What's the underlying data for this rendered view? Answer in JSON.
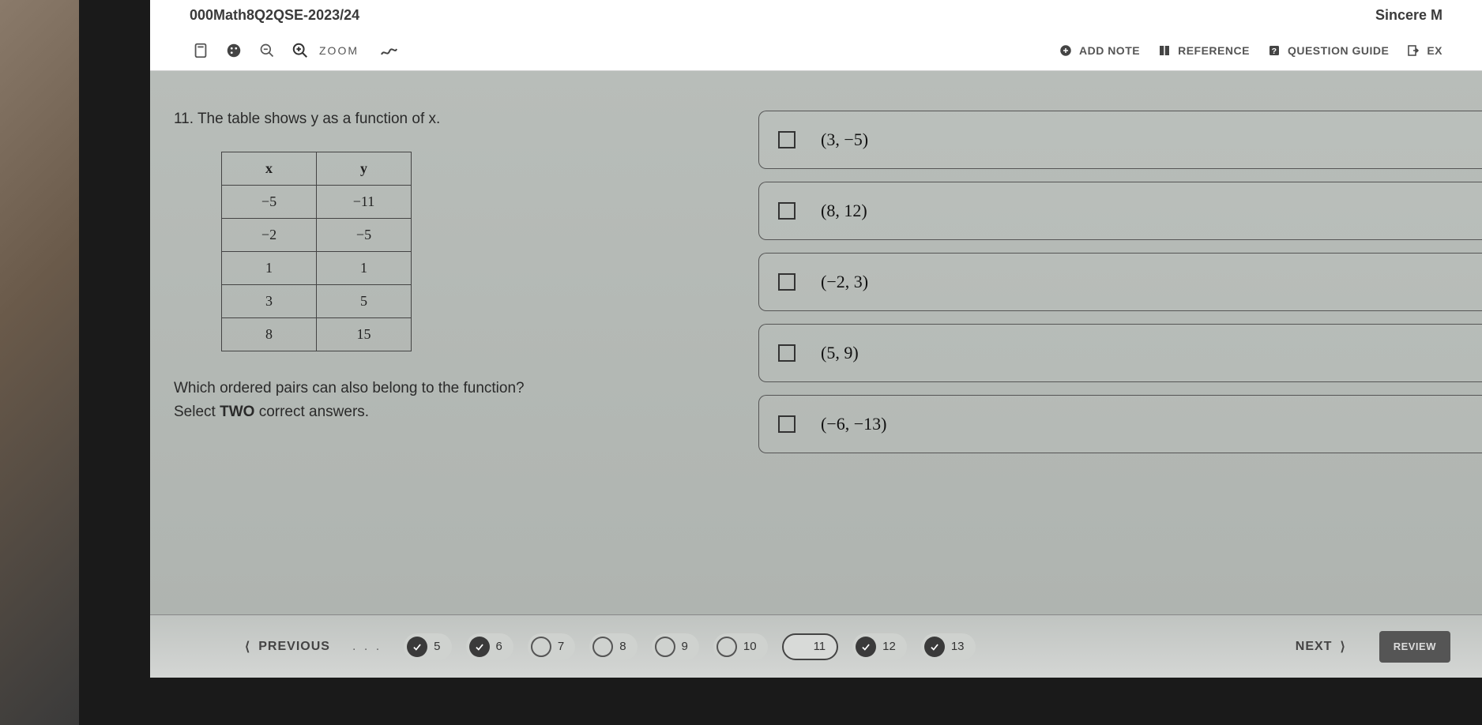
{
  "header": {
    "title": "000Math8Q2QSE-2023/24",
    "student": "Sincere M"
  },
  "toolbar": {
    "zoom_label": "ZOOM",
    "add_note": "ADD NOTE",
    "reference": "REFERENCE",
    "question_guide": "QUESTION GUIDE",
    "exit": "EX"
  },
  "question": {
    "number": "11.",
    "prompt": "The table shows y as a function of x.",
    "table": {
      "columns": [
        "x",
        "y"
      ],
      "rows": [
        [
          "−5",
          "−11"
        ],
        [
          "−2",
          "−5"
        ],
        [
          "1",
          "1"
        ],
        [
          "3",
          "5"
        ],
        [
          "8",
          "15"
        ]
      ]
    },
    "sub_prompt": "Which ordered pairs can also belong to the function?",
    "instruction_prefix": "Select ",
    "instruction_bold": "TWO",
    "instruction_suffix": " correct answers."
  },
  "answers": [
    "(3, −5)",
    "(8, 12)",
    "(−2, 3)",
    "(5, 9)",
    "(−6, −13)"
  ],
  "nav": {
    "previous": "PREVIOUS",
    "next": "NEXT",
    "review": "REVIEW",
    "items": [
      {
        "n": "5",
        "state": "answered"
      },
      {
        "n": "6",
        "state": "answered"
      },
      {
        "n": "7",
        "state": "unanswered"
      },
      {
        "n": "8",
        "state": "unanswered"
      },
      {
        "n": "9",
        "state": "unanswered"
      },
      {
        "n": "10",
        "state": "unanswered"
      },
      {
        "n": "11",
        "state": "current"
      },
      {
        "n": "12",
        "state": "answered"
      },
      {
        "n": "13",
        "state": "answered"
      }
    ]
  },
  "colors": {
    "content_bg": "#b8bdb9",
    "toolbar_bg": "#ffffff",
    "text": "#2a2a2a",
    "border": "#444444"
  }
}
